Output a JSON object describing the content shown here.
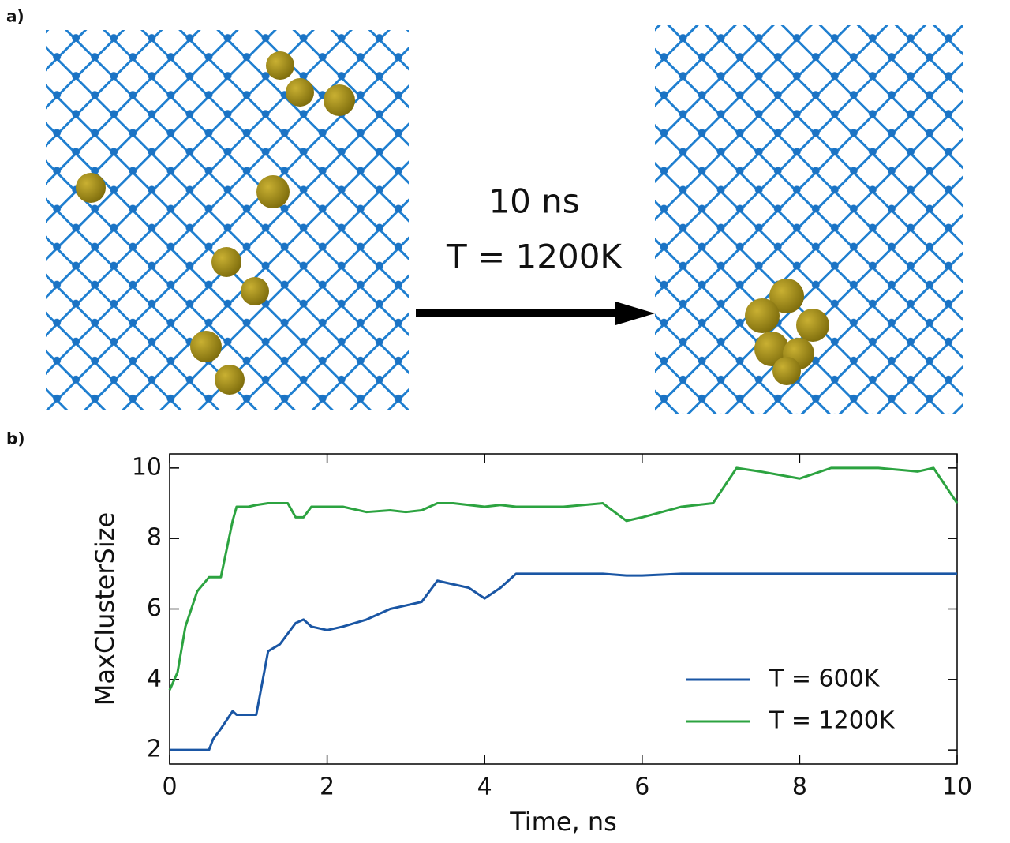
{
  "panels": {
    "a": "a)",
    "b": "b)"
  },
  "annotation": {
    "lines": [
      "10 ns",
      "T = 1200K"
    ]
  },
  "chart_data": {
    "type": "line",
    "x_label": "Time, ns",
    "y_label": "MaxClusterSize",
    "x": [
      0,
      0.1,
      0.2,
      0.35,
      0.5,
      0.55,
      0.65,
      0.8,
      0.85,
      1.0,
      1.1,
      1.25,
      1.4,
      1.5,
      1.6,
      1.7,
      1.8,
      2.0,
      2.2,
      2.5,
      2.8,
      3.0,
      3.2,
      3.4,
      3.6,
      3.8,
      4.0,
      4.2,
      4.4,
      5.0,
      5.5,
      5.8,
      6.0,
      6.5,
      6.9,
      7.2,
      7.5,
      8.0,
      8.4,
      9.0,
      9.5,
      9.7,
      10.0
    ],
    "series": [
      {
        "name": "T = 600K",
        "color": "#1a56a4",
        "values": [
          2,
          2,
          2,
          2,
          2,
          2.3,
          2.6,
          3.1,
          3.0,
          3.0,
          3.0,
          4.8,
          5.0,
          5.3,
          5.6,
          5.7,
          5.5,
          5.4,
          5.5,
          5.7,
          6.0,
          6.1,
          6.2,
          6.8,
          6.7,
          6.6,
          6.3,
          6.6,
          7.0,
          7,
          7,
          6.95,
          6.95,
          7,
          7,
          7,
          7,
          7,
          7,
          7,
          7,
          7,
          7
        ]
      },
      {
        "name": "T = 1200K",
        "color": "#2ca340",
        "values": [
          3.7,
          4.2,
          5.5,
          6.5,
          6.9,
          6.9,
          6.9,
          8.5,
          8.9,
          8.9,
          8.95,
          9.0,
          9.0,
          9.0,
          8.6,
          8.6,
          8.9,
          8.9,
          8.9,
          8.75,
          8.8,
          8.75,
          8.8,
          9.0,
          9.0,
          8.95,
          8.9,
          8.95,
          8.9,
          8.9,
          9.0,
          8.5,
          8.6,
          8.9,
          9.0,
          10.0,
          9.9,
          9.7,
          10,
          10,
          9.9,
          10,
          9.0
        ]
      }
    ],
    "xlim": [
      0,
      10
    ],
    "ylim": [
      1.6,
      10.4
    ],
    "xticks": [
      0,
      2,
      4,
      6,
      8,
      10
    ],
    "yticks": [
      2,
      4,
      6,
      8,
      10
    ],
    "legend": "lower right"
  }
}
